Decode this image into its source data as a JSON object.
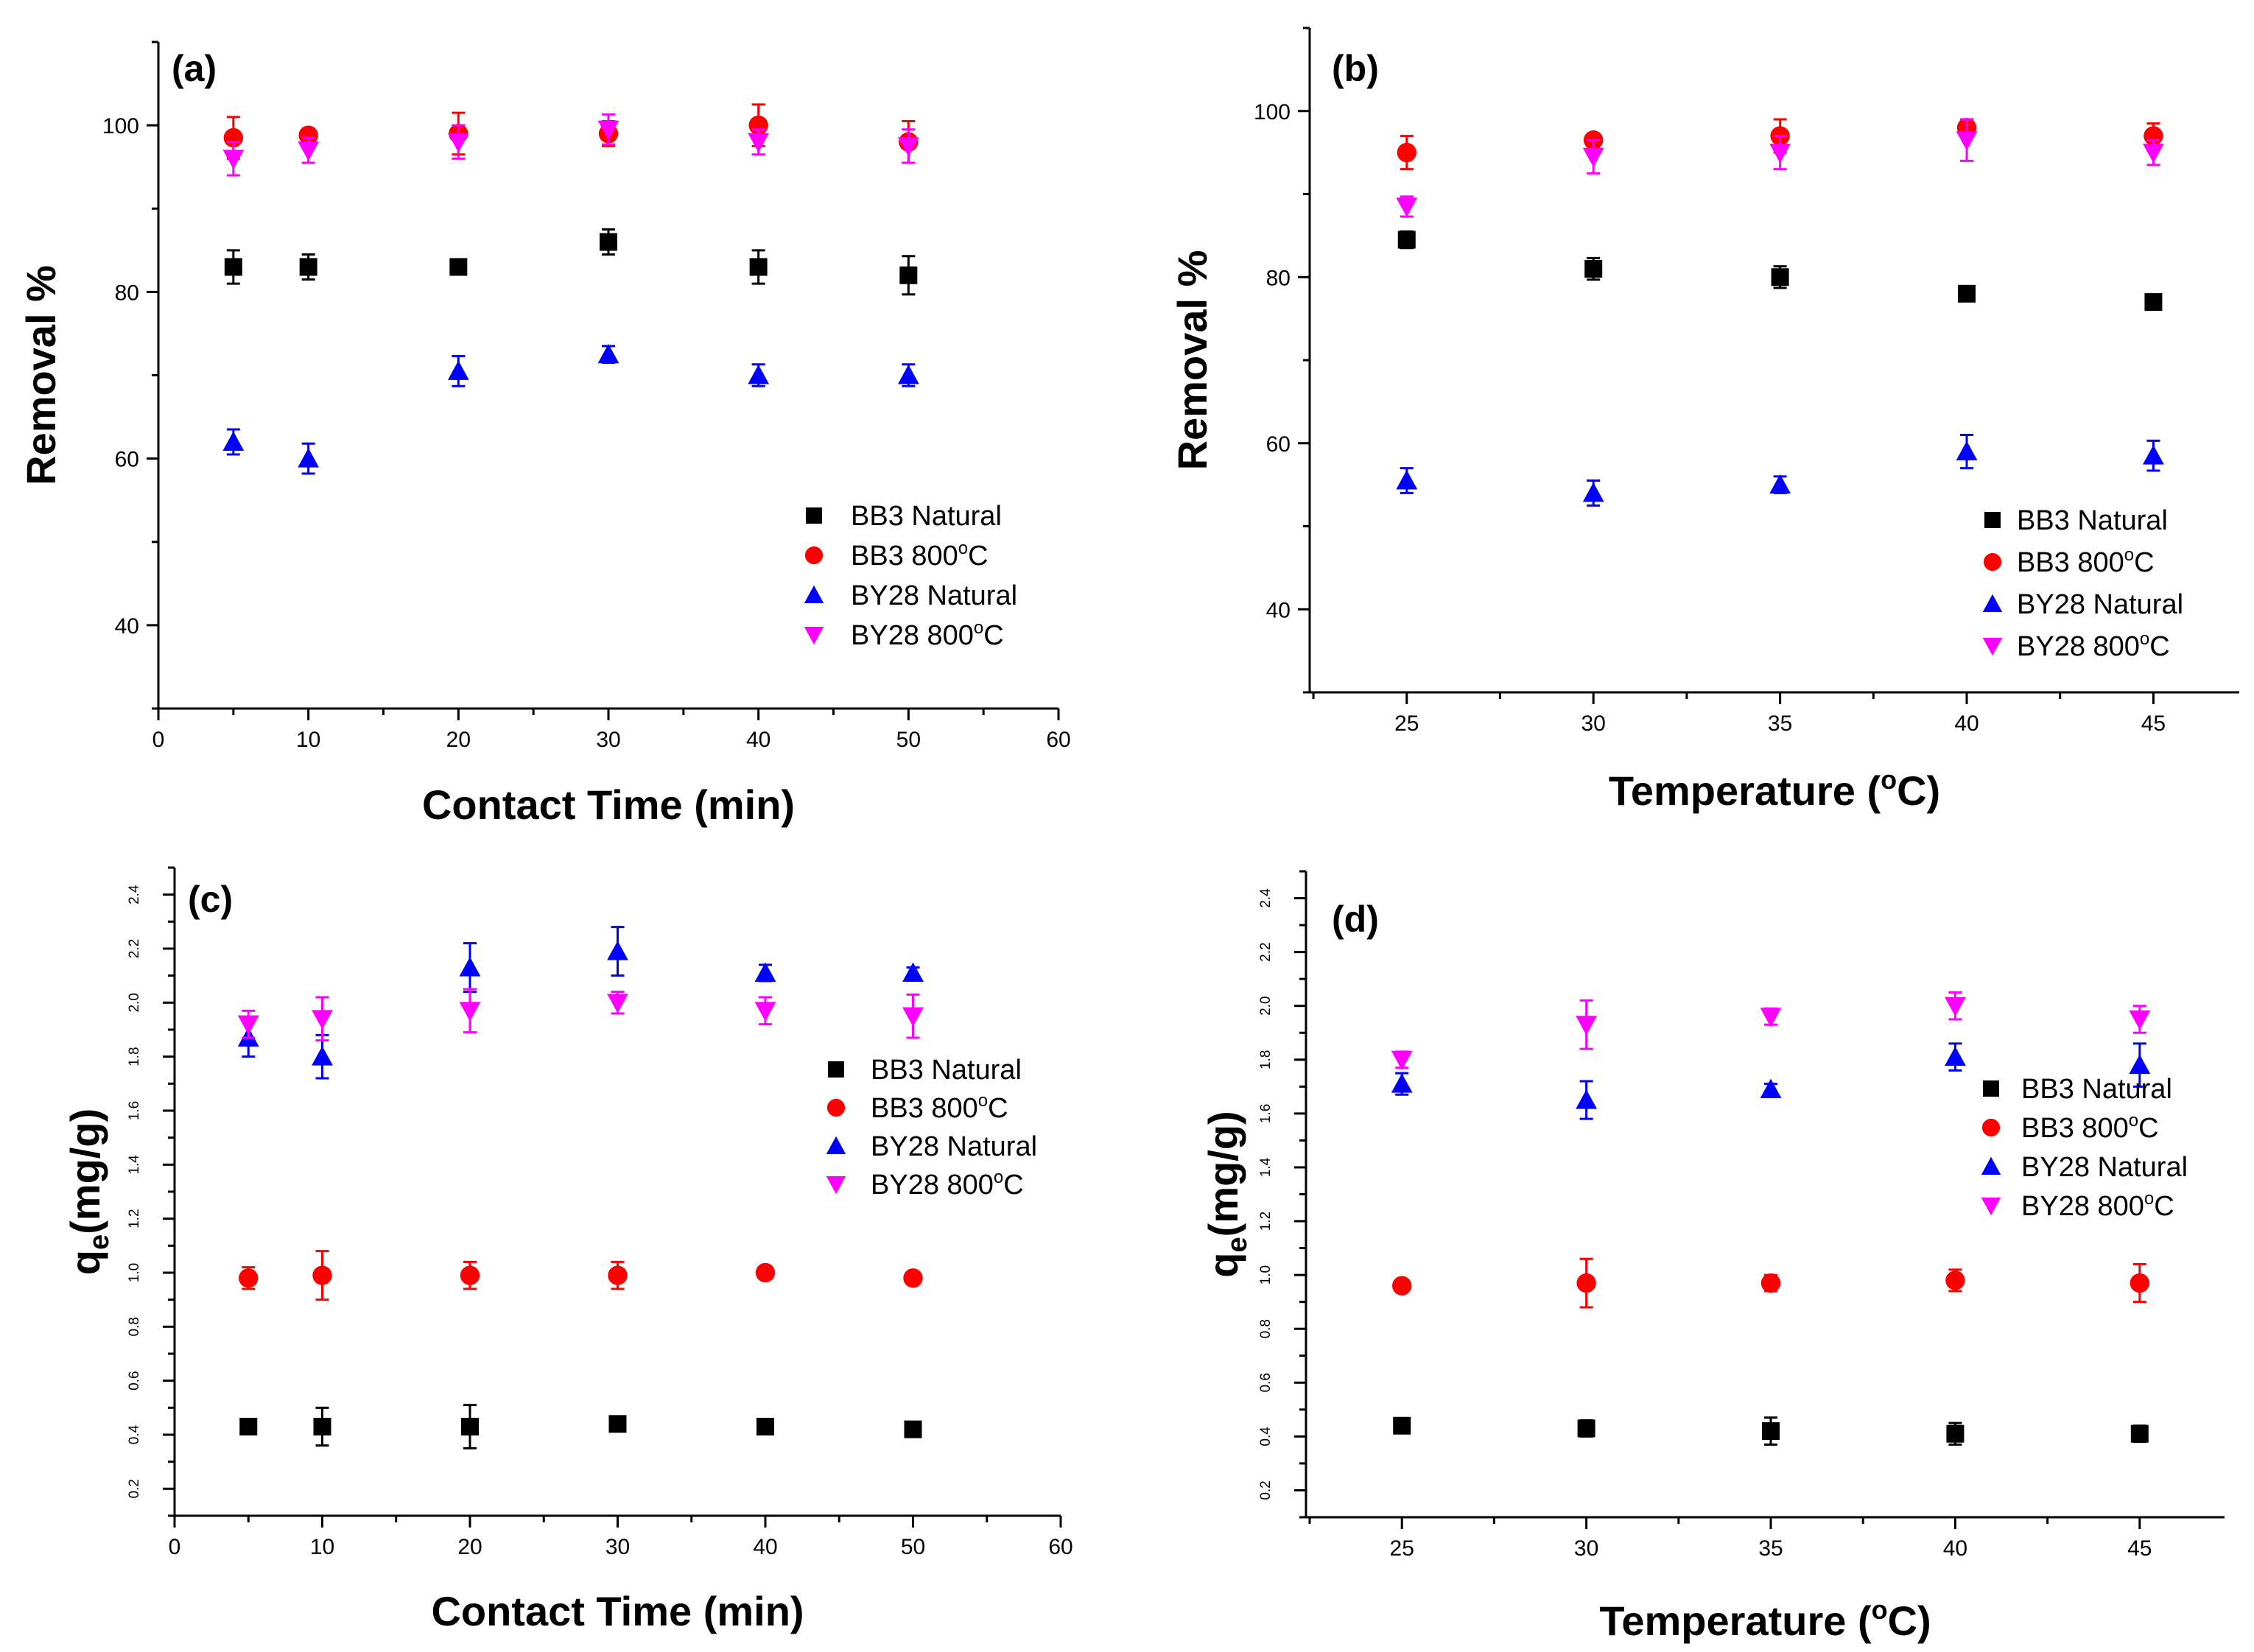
{
  "colors": {
    "BB3 Natural": "#000000",
    "BB3 800C": "#ff0000",
    "BY28 Natural": "#0000ff",
    "BY28 800C": "#ff00ff"
  },
  "markers": {
    "BB3 Natural": "square",
    "BB3 800C": "circle",
    "BY28 Natural": "triangle-up",
    "BY28 800C": "triangle-down"
  },
  "chart_data": [
    {
      "type": "scatter",
      "panel": "(a)",
      "xlabel": "Contact Time (min)",
      "ylabel": "Removal %",
      "xlim": [
        0,
        60
      ],
      "ylim": [
        30,
        110
      ],
      "xticks": [
        "0",
        "10",
        "20",
        "30",
        "40",
        "50",
        "60"
      ],
      "yticks": [
        "40",
        "60",
        "80",
        "100"
      ],
      "legend_position": "lower-right",
      "series": [
        {
          "name": "BB3   Natural",
          "key": "BB3 Natural",
          "x": [
            5,
            10,
            20,
            30,
            40,
            50
          ],
          "y": [
            83,
            83,
            83,
            86,
            83,
            82
          ],
          "err": [
            2,
            1.5,
            0.5,
            1.5,
            2,
            2.3
          ]
        },
        {
          "name": "BB3   800°C",
          "key": "BB3 800C",
          "x": [
            5,
            10,
            20,
            30,
            40,
            50
          ],
          "y": [
            98.5,
            98.8,
            99,
            99,
            100,
            98
          ],
          "err": [
            2.5,
            0.8,
            2.5,
            1.5,
            2.5,
            2.5
          ]
        },
        {
          "name": "BY28 Natural",
          "key": "BY28 Natural",
          "x": [
            5,
            10,
            20,
            30,
            40,
            50
          ],
          "y": [
            62,
            60,
            70.5,
            72.5,
            70,
            70
          ],
          "err": [
            1.5,
            1.8,
            1.8,
            1,
            1.3,
            1.3
          ]
        },
        {
          "name": "BY28 800°C",
          "key": "BY28 800C",
          "x": [
            5,
            10,
            20,
            30,
            40,
            50
          ],
          "y": [
            96,
            97,
            98,
            99.5,
            98,
            97.5
          ],
          "err": [
            2,
            1.5,
            2,
            1.8,
            1.5,
            2
          ]
        }
      ]
    },
    {
      "type": "scatter",
      "panel": "(b)",
      "xlabel": "Temperature (°C)",
      "ylabel": "Removal %",
      "xlim": [
        22.4,
        47.3
      ],
      "ylim": [
        30,
        110
      ],
      "xticks": [
        "25",
        "30",
        "35",
        "40",
        "45"
      ],
      "yticks": [
        "40",
        "60",
        "80",
        "100"
      ],
      "legend_position": "lower-right",
      "series": [
        {
          "name": "BB3   Natural",
          "key": "BB3 Natural",
          "x": [
            25,
            30,
            35,
            40,
            45
          ],
          "y": [
            84.5,
            81,
            80,
            78,
            77
          ],
          "err": [
            1,
            1.3,
            1.3,
            0.5,
            0.8
          ]
        },
        {
          "name": "BB3   800°C",
          "key": "BB3 800C",
          "x": [
            25,
            30,
            35,
            40,
            45
          ],
          "y": [
            95,
            96.5,
            97,
            98,
            97
          ],
          "err": [
            2,
            0.8,
            2,
            1,
            1.5
          ]
        },
        {
          "name": "BY28 Natural",
          "key": "BY28 Natural",
          "x": [
            25,
            30,
            35,
            40,
            45
          ],
          "y": [
            55.5,
            54,
            55,
            59,
            58.5
          ],
          "err": [
            1.5,
            1.5,
            1,
            2,
            1.8
          ]
        },
        {
          "name": "BY28 800°C",
          "key": "BY28 800C",
          "x": [
            25,
            30,
            35,
            40,
            45
          ],
          "y": [
            88.5,
            94.5,
            95,
            96.5,
            95
          ],
          "err": [
            1.2,
            2,
            2,
            2.5,
            1.5
          ]
        }
      ]
    },
    {
      "type": "scatter",
      "panel": "(c)",
      "xlabel": "Contact Time (min)",
      "ylabel": "qe(mg/g)",
      "xlim": [
        0,
        60
      ],
      "ylim": [
        0.1,
        2.5
      ],
      "xticks": [
        "0",
        "10",
        "20",
        "30",
        "40",
        "50",
        "60"
      ],
      "yticks": [
        "0.2",
        "0.4",
        "0.6",
        "0.8",
        "1.0",
        "1.2",
        "1.4",
        "1.6",
        "1.8",
        "2.0",
        "2.2",
        "2.4"
      ],
      "legend_position": "right",
      "series": [
        {
          "name": "BB3   Natural",
          "key": "BB3 Natural",
          "x": [
            5,
            10,
            20,
            30,
            40,
            50
          ],
          "y": [
            0.43,
            0.43,
            0.43,
            0.44,
            0.43,
            0.42
          ],
          "err": [
            0.01,
            0.07,
            0.08,
            0.01,
            0.01,
            0.01
          ]
        },
        {
          "name": "BB3   800°C",
          "key": "BB3 800C",
          "x": [
            5,
            10,
            20,
            30,
            40,
            50
          ],
          "y": [
            0.98,
            0.99,
            0.99,
            0.99,
            1.0,
            0.98
          ],
          "err": [
            0.04,
            0.09,
            0.05,
            0.05,
            0.02,
            0.01
          ]
        },
        {
          "name": "BY28 Natural",
          "key": "BY28 Natural",
          "x": [
            5,
            10,
            20,
            30,
            40,
            50
          ],
          "y": [
            1.87,
            1.8,
            2.13,
            2.19,
            2.11,
            2.11
          ],
          "err": [
            0.07,
            0.08,
            0.09,
            0.09,
            0.03,
            0.02
          ]
        },
        {
          "name": "BY28 800°C",
          "key": "BY28 800C",
          "x": [
            5,
            10,
            20,
            30,
            40,
            50
          ],
          "y": [
            1.92,
            1.94,
            1.97,
            2.0,
            1.97,
            1.95
          ],
          "err": [
            0.05,
            0.08,
            0.08,
            0.04,
            0.05,
            0.08
          ]
        }
      ]
    },
    {
      "type": "scatter",
      "panel": "(d)",
      "xlabel": "Temperature (°C)",
      "ylabel": "qe(mg/g)",
      "xlim": [
        22.4,
        47.3
      ],
      "ylim": [
        0.1,
        2.5
      ],
      "xticks": [
        "25",
        "30",
        "35",
        "40",
        "45"
      ],
      "yticks": [
        "0.2",
        "0.4",
        "0.6",
        "0.8",
        "1.0",
        "1.2",
        "1.4",
        "1.6",
        "1.8",
        "2.0",
        "2.2",
        "2.4"
      ],
      "legend_position": "right",
      "series": [
        {
          "name": "BB3   Natural",
          "key": "BB3 Natural",
          "x": [
            25,
            30,
            35,
            40,
            45
          ],
          "y": [
            0.44,
            0.43,
            0.42,
            0.41,
            0.41
          ],
          "err": [
            0.01,
            0.03,
            0.05,
            0.04,
            0.03
          ]
        },
        {
          "name": "BB3   800°C",
          "key": "BB3 800C",
          "x": [
            25,
            30,
            35,
            40,
            45
          ],
          "y": [
            0.96,
            0.97,
            0.97,
            0.98,
            0.97
          ],
          "err": [
            0.01,
            0.09,
            0.03,
            0.04,
            0.07
          ]
        },
        {
          "name": "BY28 Natural",
          "key": "BY28 Natural",
          "x": [
            25,
            30,
            35,
            40,
            45
          ],
          "y": [
            1.71,
            1.65,
            1.69,
            1.81,
            1.78
          ],
          "err": [
            0.04,
            0.07,
            0.02,
            0.05,
            0.08
          ]
        },
        {
          "name": "BY28 800°C",
          "key": "BY28 800C",
          "x": [
            25,
            30,
            35,
            40,
            45
          ],
          "y": [
            1.8,
            1.93,
            1.96,
            2.0,
            1.95
          ],
          "err": [
            0.03,
            0.09,
            0.03,
            0.05,
            0.05
          ]
        }
      ]
    }
  ]
}
